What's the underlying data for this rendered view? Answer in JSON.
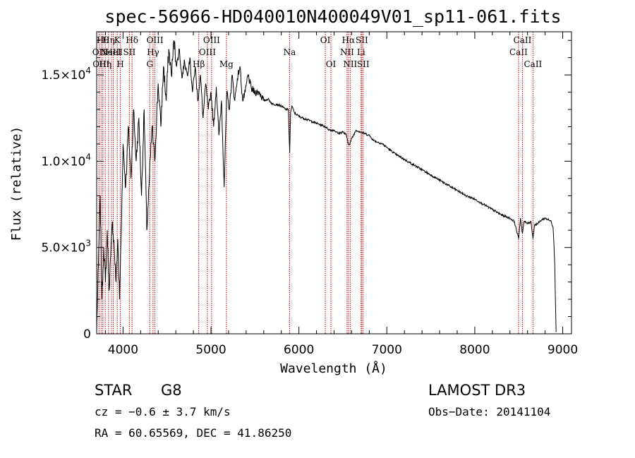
{
  "chart_data": {
    "type": "line",
    "title": "spec-56966-HD040010N400049V01_sp11-061.fits",
    "xlabel": "Wavelength (Å)",
    "ylabel": "Flux (relative)",
    "xlim": [
      3700,
      9100
    ],
    "ylim": [
      0,
      17500
    ],
    "x_ticks": [
      4000,
      5000,
      6000,
      7000,
      8000,
      9000
    ],
    "x_tick_labels": [
      "4000",
      "5000",
      "6000",
      "7000",
      "8000",
      "9000"
    ],
    "y_ticks": [
      0,
      5000,
      10000,
      15000
    ],
    "y_tick_labels": [
      "0",
      "5.0×10",
      "1.0×10",
      "1.5×10"
    ],
    "y_tick_exponents": [
      "",
      "3",
      "4",
      "4"
    ],
    "series": [
      {
        "name": "flux",
        "x": [
          3700,
          3720,
          3740,
          3760,
          3780,
          3800,
          3820,
          3840,
          3860,
          3880,
          3900,
          3920,
          3940,
          3960,
          3980,
          4000,
          4030,
          4060,
          4090,
          4120,
          4150,
          4180,
          4210,
          4240,
          4270,
          4300,
          4330,
          4360,
          4400,
          4430,
          4460,
          4490,
          4520,
          4550,
          4580,
          4610,
          4640,
          4670,
          4700,
          4730,
          4760,
          4790,
          4820,
          4850,
          4880,
          4910,
          4940,
          4970,
          5000,
          5030,
          5060,
          5090,
          5120,
          5150,
          5180,
          5210,
          5240,
          5270,
          5300,
          5330,
          5360,
          5390,
          5420,
          5460,
          5500,
          5550,
          5600,
          5650,
          5700,
          5750,
          5800,
          5850,
          5880,
          5895,
          5905,
          5920,
          5950,
          6000,
          6050,
          6100,
          6150,
          6200,
          6250,
          6300,
          6350,
          6400,
          6450,
          6500,
          6540,
          6563,
          6580,
          6600,
          6650,
          6700,
          6750,
          6800,
          6850,
          6900,
          6950,
          7000,
          7100,
          7200,
          7300,
          7400,
          7500,
          7600,
          7700,
          7800,
          7900,
          8000,
          8100,
          8200,
          8300,
          8400,
          8450,
          8498,
          8520,
          8542,
          8560,
          8600,
          8640,
          8662,
          8680,
          8720,
          8760,
          8800,
          8840,
          8870,
          8890,
          8900,
          8910,
          8920,
          8925
        ],
        "y": [
          200,
          4000,
          8000,
          2000,
          5000,
          3000,
          6000,
          2500,
          4500,
          6500,
          5000,
          3000,
          5500,
          2000,
          6000,
          11000,
          8500,
          12000,
          9000,
          13000,
          10000,
          12500,
          8000,
          13000,
          6000,
          9000,
          12000,
          10000,
          14500,
          12000,
          15500,
          13500,
          16500,
          15000,
          17000,
          15500,
          16500,
          14800,
          15800,
          15000,
          16000,
          14000,
          15500,
          13500,
          15000,
          12500,
          14500,
          13000,
          14000,
          12000,
          14300,
          11500,
          13500,
          8500,
          14000,
          13000,
          15000,
          13500,
          14800,
          15500,
          13500,
          14000,
          15000,
          14200,
          14000,
          14000,
          13500,
          13600,
          13300,
          13300,
          13200,
          13000,
          13000,
          10500,
          12800,
          13200,
          12800,
          12600,
          12500,
          12400,
          12300,
          12200,
          12100,
          12000,
          11800,
          11800,
          11600,
          11700,
          11500,
          11000,
          11000,
          11300,
          11800,
          11700,
          11600,
          11500,
          11200,
          11100,
          11000,
          10800,
          10400,
          10100,
          9800,
          9500,
          9200,
          8900,
          8600,
          8300,
          8000,
          7800,
          7500,
          7200,
          6900,
          6700,
          6500,
          5500,
          6700,
          5800,
          6500,
          6400,
          6500,
          5500,
          6300,
          6400,
          6600,
          6700,
          6600,
          6500,
          6200,
          5200,
          4000,
          1200,
          100
        ]
      }
    ],
    "line_markers": [
      {
        "wavelength": 3727,
        "label": "OII",
        "row": 1
      },
      {
        "wavelength": 3750,
        "label": "OIII",
        "row": 2
      },
      {
        "wavelength": 3770,
        "label": "Hθ",
        "row": 0
      },
      {
        "wavelength": 3798,
        "label": "Hη",
        "row": 2
      },
      {
        "wavelength": 3835,
        "label": "Hη",
        "row": 0
      },
      {
        "wavelength": 3869,
        "label": "NeIII",
        "row": 1
      },
      {
        "wavelength": 3889,
        "label": "HeI",
        "row": 1
      },
      {
        "wavelength": 3934,
        "label": "K",
        "row": 0
      },
      {
        "wavelength": 3970,
        "label": "H",
        "row": 2
      },
      {
        "wavelength": 4072,
        "label": "SII",
        "row": 1
      },
      {
        "wavelength": 4102,
        "label": "Hδ",
        "row": 0
      },
      {
        "wavelength": 4304,
        "label": "G",
        "row": 2
      },
      {
        "wavelength": 4341,
        "label": "Hγ",
        "row": 1
      },
      {
        "wavelength": 4363,
        "label": "OIII",
        "row": 0
      },
      {
        "wavelength": 4861,
        "label": "Hβ",
        "row": 2
      },
      {
        "wavelength": 4959,
        "label": "OIII",
        "row": 1
      },
      {
        "wavelength": 5007,
        "label": "OIII",
        "row": 0
      },
      {
        "wavelength": 5175,
        "label": "Mg",
        "row": 2
      },
      {
        "wavelength": 5894,
        "label": "Na",
        "row": 1
      },
      {
        "wavelength": 6300,
        "label": "OI",
        "row": 0
      },
      {
        "wavelength": 6364,
        "label": "OI",
        "row": 2
      },
      {
        "wavelength": 6548,
        "label": "NII",
        "row": 1
      },
      {
        "wavelength": 6563,
        "label": "Hα",
        "row": 0
      },
      {
        "wavelength": 6583,
        "label": "NII",
        "row": 2
      },
      {
        "wavelength": 6707,
        "label": "Li",
        "row": 1
      },
      {
        "wavelength": 6716,
        "label": "SII",
        "row": 0
      },
      {
        "wavelength": 6731,
        "label": "SII",
        "row": 2
      },
      {
        "wavelength": 8498,
        "label": "CaII",
        "row": 1
      },
      {
        "wavelength": 8542,
        "label": "CaII",
        "row": 0
      },
      {
        "wavelength": 8662,
        "label": "CaII",
        "row": 2
      }
    ],
    "marker_color": "#cc0000",
    "line_color": "#000000"
  },
  "info": {
    "object_class": "STAR",
    "subclass": "G8",
    "redshift": "cz =  −0.6 ± 3.7 km/s",
    "coords": "RA =  60.65569, DEC =  41.86250",
    "survey": "LAMOST DR3",
    "obs_date": "Obs−Date: 20141104"
  }
}
